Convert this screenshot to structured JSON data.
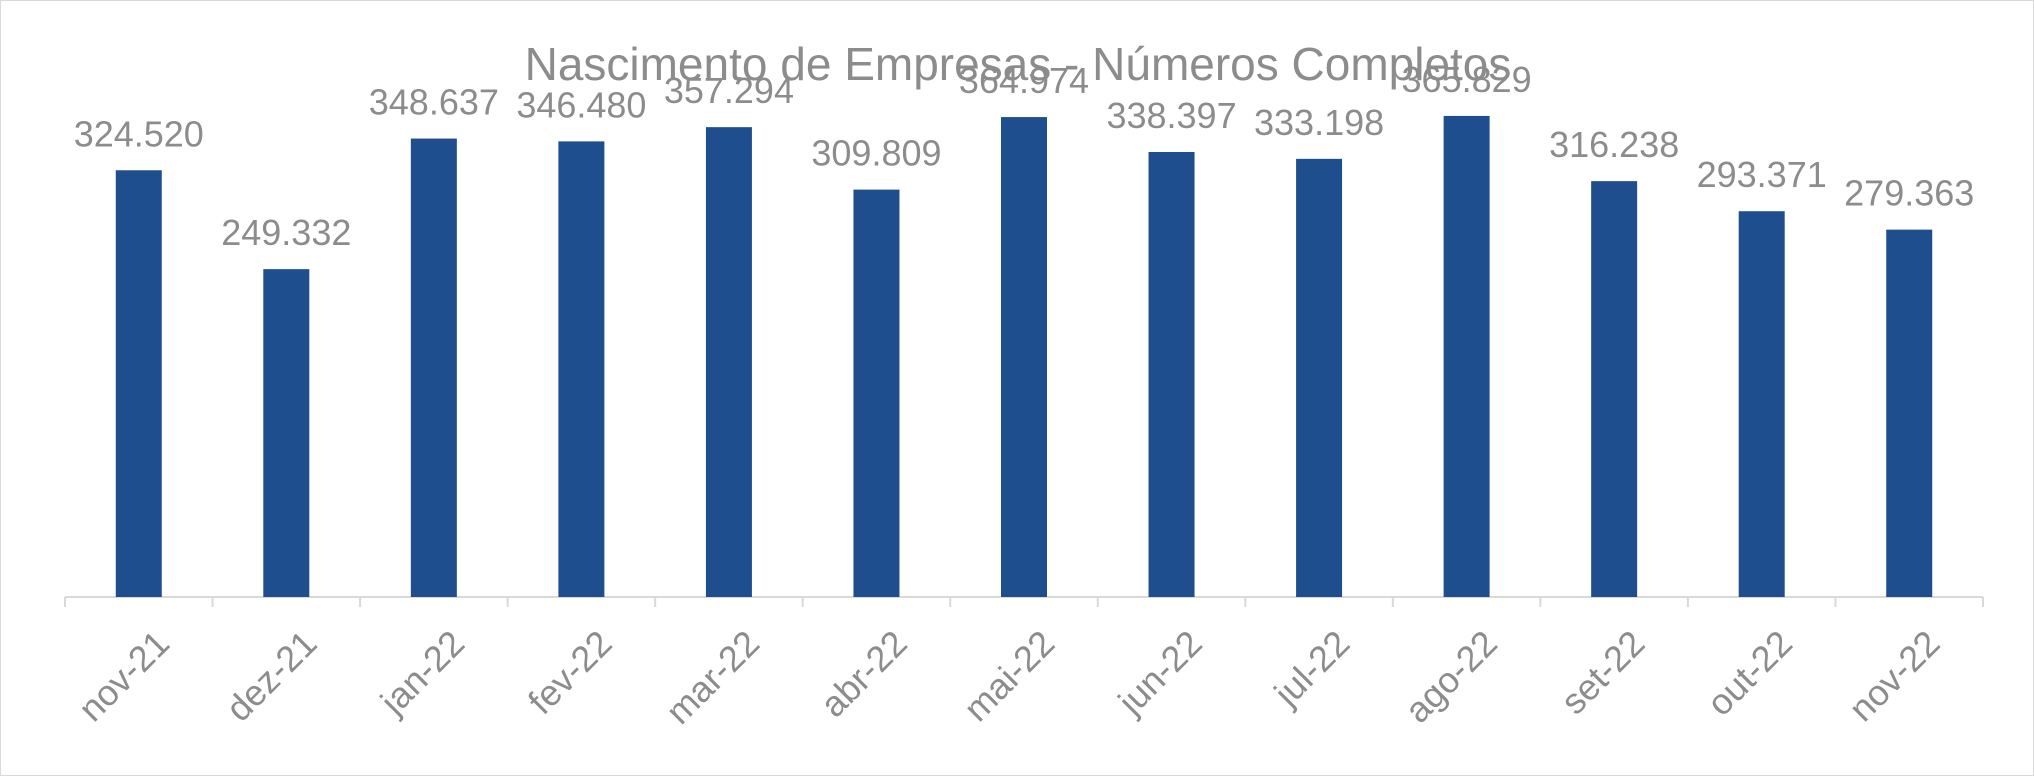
{
  "chart_data": {
    "type": "bar",
    "title": "Nascimento de Empresas - Números Completos",
    "xlabel": "",
    "ylabel": "",
    "ylim": [
      0,
      400000
    ],
    "grid": false,
    "legend": "none",
    "bar_color": "#1f4e8f",
    "text_color": "#8c8c8c",
    "axis_color": "#d9d9d9",
    "categories": [
      "nov-21",
      "dez-21",
      "jan-22",
      "fev-22",
      "mar-22",
      "abr-22",
      "mai-22",
      "jun-22",
      "jul-22",
      "ago-22",
      "set-22",
      "out-22",
      "nov-22"
    ],
    "values": [
      324520,
      249332,
      348637,
      346480,
      357294,
      309809,
      364974,
      338397,
      333198,
      365829,
      316238,
      293371,
      279363
    ],
    "data_labels": [
      "324.520",
      "249.332",
      "348.637",
      "346.480",
      "357.294",
      "309.809",
      "364.974",
      "338.397",
      "333.198",
      "365.829",
      "316.238",
      "293.371",
      "279.363"
    ]
  }
}
